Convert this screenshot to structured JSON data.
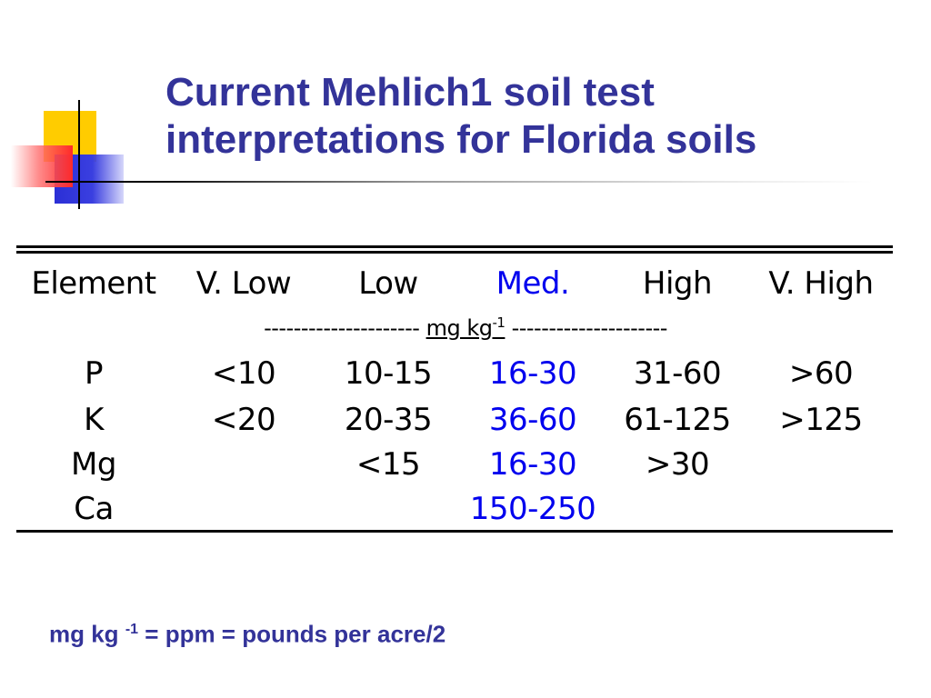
{
  "title": {
    "line1": "Current Mehlich1 soil test",
    "line2": "interpretations for Florida soils"
  },
  "table": {
    "headers": [
      "Element",
      "V. Low",
      "Low",
      "Med.",
      "High",
      "V. High"
    ],
    "units": {
      "dashes_left": "---------------------",
      "unit": "mg kg",
      "exponent": "-1",
      "dashes_right": "---------------------"
    },
    "rows": [
      [
        "P",
        "<10",
        "10-15",
        "16-30",
        "31-60",
        ">60"
      ],
      [
        "K",
        "<20",
        "20-35",
        "36-60",
        "61-125",
        ">125"
      ],
      [
        "Mg",
        "",
        "<15",
        "16-30",
        ">30",
        ""
      ],
      [
        "Ca",
        "",
        "",
        "150-250",
        "",
        ""
      ]
    ]
  },
  "footer": {
    "unit": "mg kg",
    "exponent": "-1",
    "equation": "= ppm = pounds per acre/2"
  },
  "colors": {
    "title": "#333399",
    "medium_column": "#0000ee",
    "accent_yellow": "#ffcc00",
    "accent_blue": "#2b2fd6",
    "accent_red": "#ff2a2a"
  }
}
